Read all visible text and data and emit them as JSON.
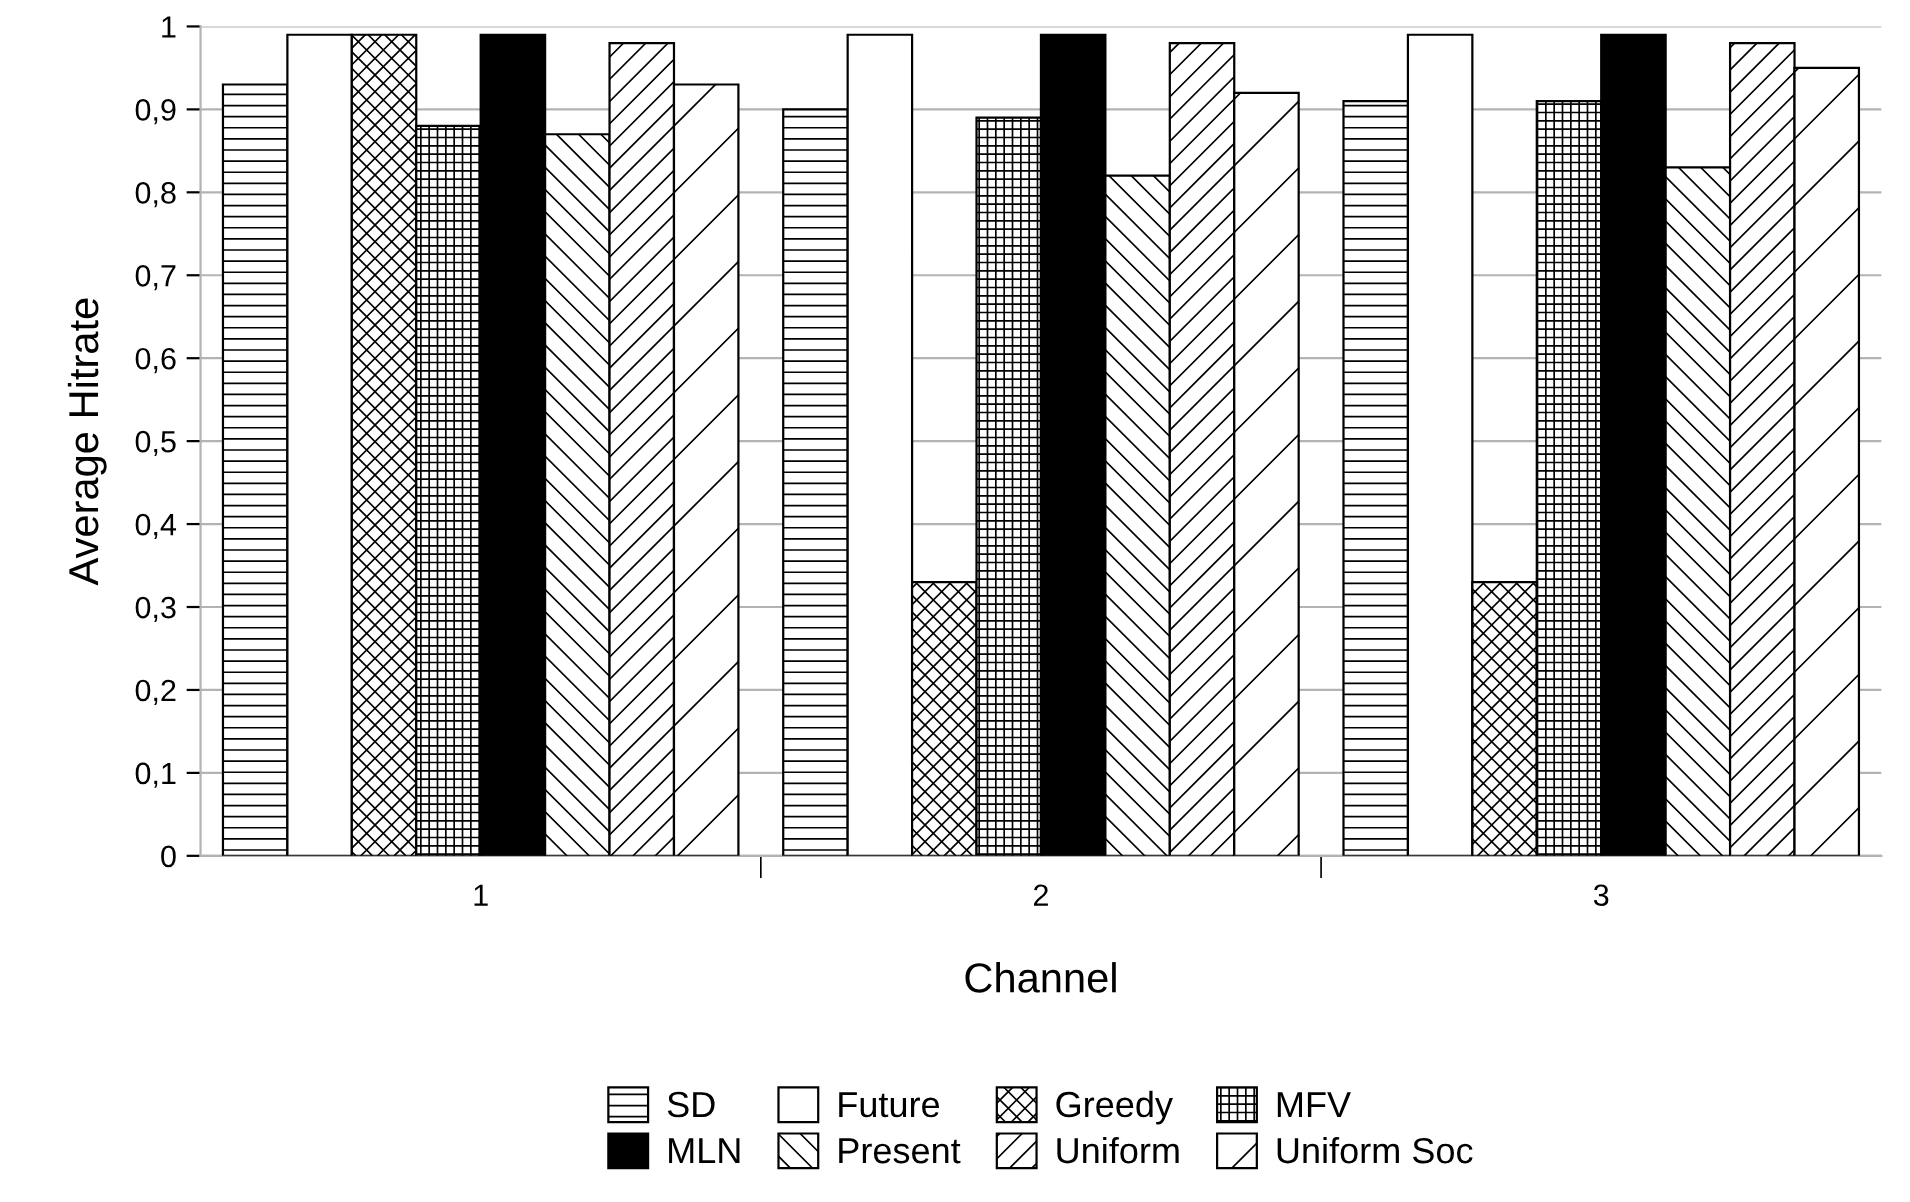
{
  "chart_data": {
    "type": "bar",
    "xlabel": "Channel",
    "ylabel": "Average Hitrate",
    "categories": [
      "1",
      "2",
      "3"
    ],
    "series": [
      {
        "name": "SD",
        "color": "#000000",
        "values": [
          0.93,
          0.9,
          0.91
        ]
      },
      {
        "name": "Future",
        "color": "#ffffff",
        "values": [
          0.99,
          0.99,
          0.99
        ]
      },
      {
        "name": "Greedy",
        "color": "#000000",
        "values": [
          0.99,
          0.33,
          0.33
        ]
      },
      {
        "name": "MFV",
        "color": "#000000",
        "values": [
          0.88,
          0.89,
          0.91
        ]
      },
      {
        "name": "MLN",
        "color": "#000000",
        "values": [
          0.99,
          0.99,
          0.99
        ]
      },
      {
        "name": "Present",
        "color": "#000000",
        "values": [
          0.87,
          0.82,
          0.83
        ]
      },
      {
        "name": "Uniform",
        "color": "#000000",
        "values": [
          0.98,
          0.98,
          0.98
        ]
      },
      {
        "name": "Uniform Soc",
        "color": "#000000",
        "values": [
          0.93,
          0.92,
          0.95
        ]
      }
    ],
    "ylim": [
      0,
      1
    ],
    "yticks": [
      0,
      {
        "value": 0.1,
        "label": "0,1"
      },
      {
        "value": 0.2,
        "label": "0,2"
      },
      {
        "value": 0.3,
        "label": "0,3"
      },
      {
        "value": 0.4,
        "label": "0,4"
      },
      {
        "value": 0.5,
        "label": "0,5"
      },
      {
        "value": 0.6,
        "label": "0,6"
      },
      {
        "value": 0.7,
        "label": "0,7"
      },
      {
        "value": 0.8,
        "label": "0,8"
      },
      {
        "value": 0.9,
        "label": "0,9"
      },
      1
    ],
    "grid": "y",
    "legend": "bottom"
  }
}
